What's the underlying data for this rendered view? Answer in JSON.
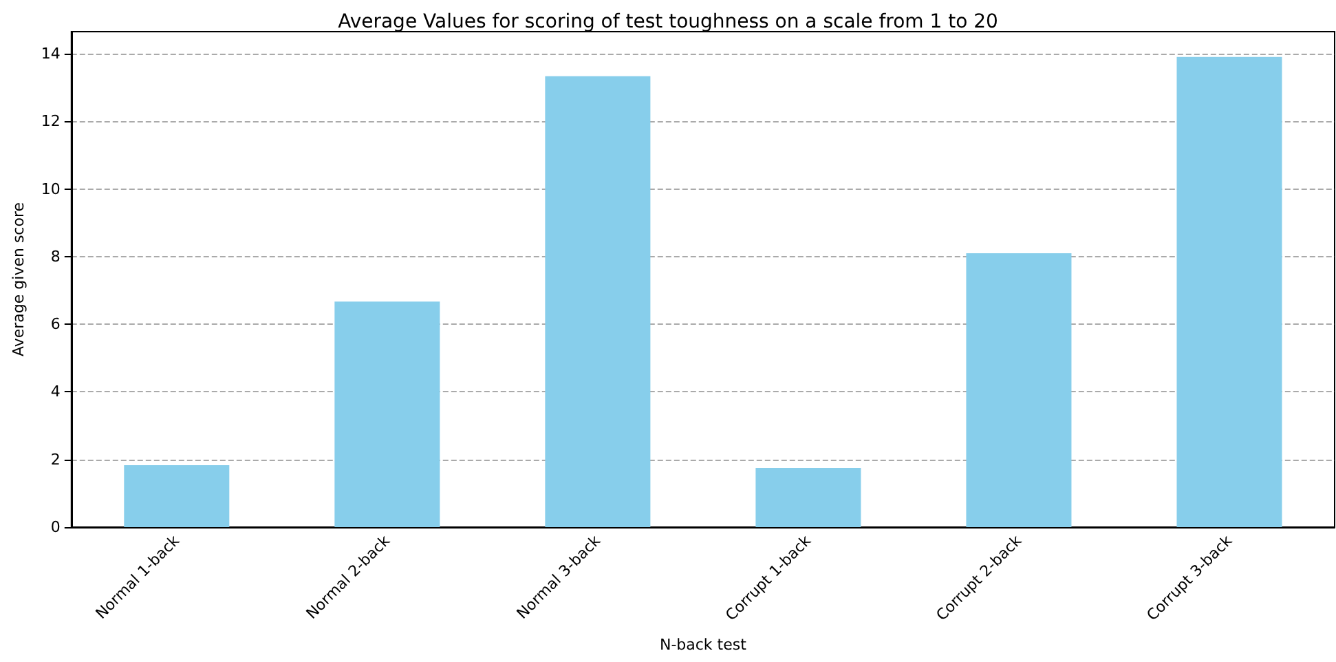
{
  "chart_data": {
    "type": "bar",
    "title": "Average Values for scoring of test toughness on a scale from 1 to 20",
    "xlabel": "N-back test",
    "ylabel": "Average given score",
    "categories": [
      "Normal 1-back",
      "Normal 2-back",
      "Normal 3-back",
      "Corrupt 1-back",
      "Corrupt 2-back",
      "Corrupt 3-back"
    ],
    "values": [
      1.83,
      6.67,
      13.33,
      1.75,
      8.1,
      13.9
    ],
    "color": "#87ceeb",
    "ylim": [
      0,
      14.65
    ],
    "yticks": [
      0,
      2,
      4,
      6,
      8,
      10,
      12,
      14
    ],
    "grid": "y"
  }
}
